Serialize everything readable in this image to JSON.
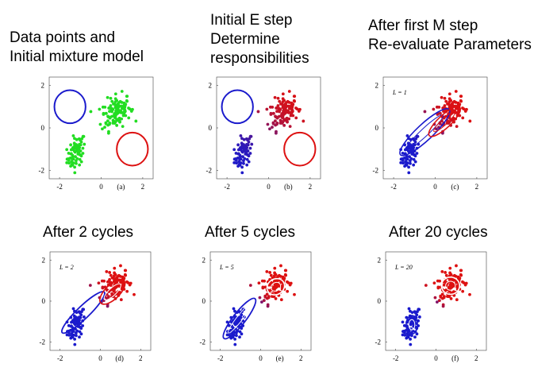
{
  "titles": [
    {
      "lines": [
        "Data points and",
        "Initial mixture model"
      ]
    },
    {
      "lines": [
        "Initial E step",
        "Determine",
        "responsibilities"
      ]
    },
    {
      "lines": [
        "After first M step",
        "Re-evaluate Parameters"
      ]
    },
    {
      "lines": [
        "After 2 cycles"
      ]
    },
    {
      "lines": [
        "After 5 cycles"
      ]
    },
    {
      "lines": [
        "After 20 cycles"
      ]
    }
  ],
  "panels": [
    {
      "label": "(a)",
      "L": ""
    },
    {
      "label": "(b)",
      "L": ""
    },
    {
      "label": "(c)",
      "L": "L = 1"
    },
    {
      "label": "(d)",
      "L": "L = 2"
    },
    {
      "label": "(e)",
      "L": "L = 5"
    },
    {
      "label": "(f)",
      "L": "L = 20"
    }
  ],
  "axes": {
    "x_ticks": [
      "-2",
      "0",
      "2"
    ],
    "y_ticks": [
      "2",
      "0",
      "-2"
    ]
  },
  "colors": {
    "cluster1": "#1a1acc",
    "cluster2": "#dd1111",
    "unassigned": "#22dd22"
  }
}
